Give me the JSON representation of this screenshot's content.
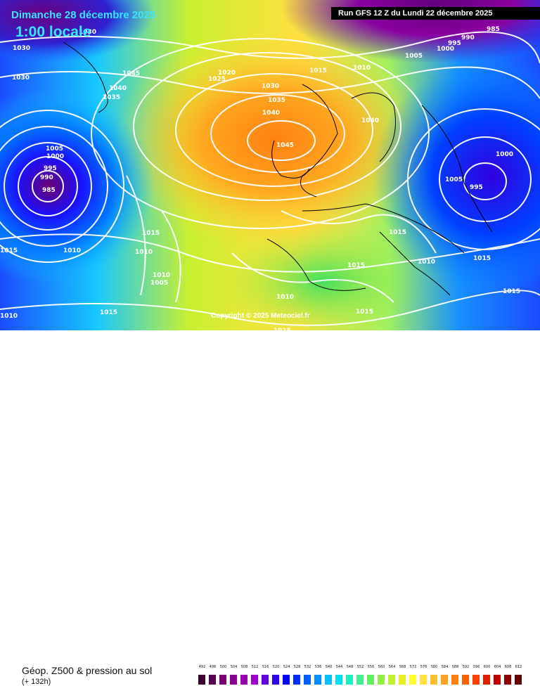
{
  "header": {
    "date_title": "Dimanche 28 décembre 2025",
    "time_title": "1:00 locale",
    "run_label": "Run GFS 12 Z du Lundi 22 décembre 2025"
  },
  "map": {
    "copyright": "Copyright © 2025 Meteociel.fr",
    "isobar_labels": [
      "1030",
      "1030",
      "1030",
      "1045",
      "1040",
      "1035",
      "1025",
      "1020",
      "1015",
      "1010",
      "1030",
      "1035",
      "1040",
      "1045",
      "1040",
      "1005",
      "1000",
      "995",
      "990",
      "985",
      "1015",
      "1010",
      "1010",
      "1015",
      "1010",
      "1005",
      "1010",
      "1015",
      "1015",
      "1015",
      "1005",
      "995",
      "1000",
      "1015",
      "1010",
      "1010",
      "1015",
      "1015",
      "1015",
      "985",
      "990",
      "995",
      "1000",
      "1005"
    ]
  },
  "footer": {
    "product_title": "Géop. Z500 & pression au sol",
    "forecast_horizon": "(+ 132h)"
  },
  "legend": {
    "labels": [
      "492",
      "496",
      "500",
      "504",
      "508",
      "512",
      "516",
      "520",
      "524",
      "528",
      "532",
      "536",
      "540",
      "544",
      "548",
      "552",
      "556",
      "560",
      "564",
      "568",
      "572",
      "576",
      "580",
      "584",
      "588",
      "592",
      "596",
      "600",
      "604",
      "608",
      "612"
    ],
    "colors": [
      "#3a0030",
      "#5a0050",
      "#7a0070",
      "#8a0090",
      "#9a00b0",
      "#a000d0",
      "#6400e0",
      "#3000f0",
      "#0000ff",
      "#0030ff",
      "#0060ff",
      "#0090ff",
      "#00c0ff",
      "#00e0f0",
      "#20f0c0",
      "#40f090",
      "#60f060",
      "#90f040",
      "#c0f030",
      "#e8f020",
      "#ffff30",
      "#ffe040",
      "#ffc030",
      "#ffa020",
      "#ff8010",
      "#ff6000",
      "#ff4000",
      "#e02000",
      "#c00000",
      "#900000",
      "#600000"
    ]
  }
}
